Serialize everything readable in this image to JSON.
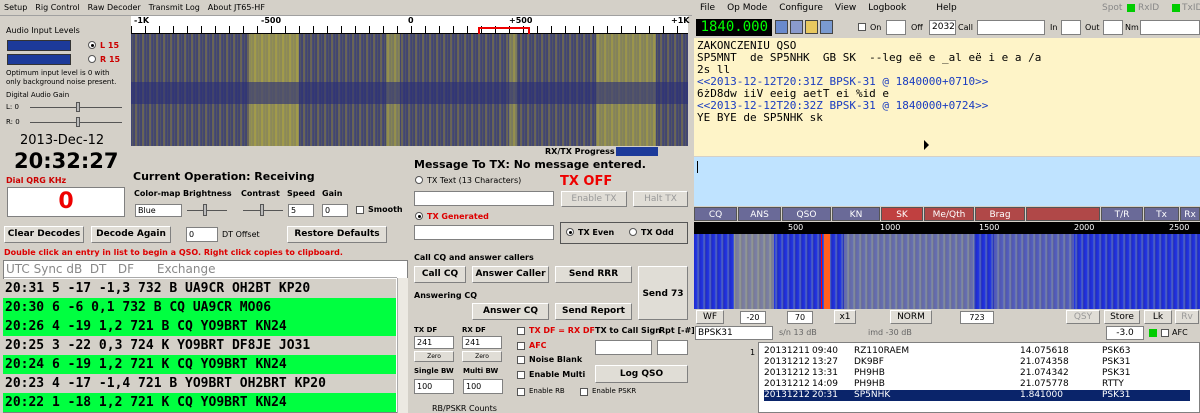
{
  "left_menu": [
    "Setup",
    "Rig Control",
    "Raw Decoder",
    "Transmit Log",
    "About JT65-HF"
  ],
  "audio": {
    "title": "Audio Input Levels",
    "left": "L 15",
    "right": "R 15",
    "note1": "Optimum input level is 0 with",
    "note2": "only background noise present.",
    "gain_title": "Digital Audio Gain",
    "l_lbl": "L: 0",
    "r_lbl": "R: 0"
  },
  "date": "2013-Dec-12",
  "time": "20:32:27",
  "qrg_label": "Dial QRG KHz",
  "qrg_value": "0",
  "ruler": {
    "m1k": "-1K",
    "m500": "-500",
    "z": "0",
    "p500": "+500",
    "p1k": "+1K"
  },
  "rxtx_progress": "RX/TX Progress",
  "operation": "Current Operation:  Receiving",
  "ctrl": {
    "colormap": "Color-map",
    "brightness": "Brightness",
    "contrast": "Contrast",
    "speed": "Speed",
    "gain": "Gain",
    "colormap_val": "Blue",
    "speed_val": "5",
    "gain_val": "0",
    "smooth": "Smooth"
  },
  "buttons": {
    "clear": "Clear Decodes",
    "decode": "Decode Again",
    "dt_val": "0",
    "dt_lbl": "DT Offset",
    "restore": "Restore Defaults"
  },
  "hint": "Double click an entry in list to begin a QSO.  Right click copies to clipboard.",
  "list_header": "UTC Sync dB  DT   DF      Exchange",
  "decodes": [
    {
      "t": "20:31  5 -17 -1,3   732  B UA9CR OH2BT KP20",
      "c": "grey"
    },
    {
      "t": "20:30  6  -6  0,1   732  B CQ UA9CR MO06",
      "c": "green"
    },
    {
      "t": "20:26  4 -19  1,2   721  B CQ YO9BRT KN24",
      "c": "green"
    },
    {
      "t": "20:25  3 -22  0,3   724  K YO9BRT DF8JE JO31",
      "c": "grey"
    },
    {
      "t": "20:24  6 -19  1,2   721  K CQ YO9BRT KN24",
      "c": "green"
    },
    {
      "t": "20:23  4 -17 -1,4   721  B YO9BRT OH2BRT KP20",
      "c": "grey"
    },
    {
      "t": "20:22  1 -18  1,2   721  K CQ YO9BRT KN24",
      "c": "green"
    }
  ],
  "msg": {
    "title": "Message To TX:  No message entered.",
    "tx_text": "TX Text (13 Characters)",
    "tx_off": "TX OFF",
    "enable_tx": "Enable TX",
    "halt_tx": "Halt TX",
    "tx_gen": "TX Generated",
    "tx_even": "TX Even",
    "tx_odd": "TX Odd"
  },
  "callcq": {
    "title": "Call CQ and answer callers",
    "call_cq": "Call CQ",
    "answer_caller": "Answer Caller",
    "send_rrr": "Send RRR",
    "send73": "Send 73",
    "answering": "Answering CQ",
    "answer_cq": "Answer CQ",
    "send_report": "Send Report"
  },
  "txdf": {
    "tx_df": "TX DF",
    "rx_df": "RX DF",
    "tx_val": "241",
    "rx_val": "241",
    "zero": "Zero",
    "single_bw": "Single BW",
    "multi_bw": "Multi BW",
    "sbw_val": "100",
    "mbw_val": "100",
    "txdf_eq": "TX DF = RX DF",
    "afc": "AFC",
    "noise": "Noise Blank",
    "multi": "Enable Multi",
    "enable_rb": "Enable RB",
    "enable_pskr": "Enable PSKR",
    "call_sign": "TX to Call Sign",
    "rpt": "Rpt [-#]",
    "log_qso": "Log QSO",
    "rb_counts": "RB/PSKR Counts"
  },
  "right_menu": [
    "File",
    "Op Mode",
    "Configure",
    "View",
    "Logbook",
    "Help"
  ],
  "right_top": {
    "spot": "Spot",
    "rxid": "RxID",
    "txid": "TxID",
    "freq": "1840.000",
    "on": "On",
    "off": "Off",
    "off_val": "2032",
    "call": "Call",
    "in": "In",
    "out": "Out",
    "nm": "Nm"
  },
  "rx_lines": [
    {
      "t": "ZAKONCZENIU QSO",
      "c": "#000"
    },
    {
      "t": "SP5MNT  de SP5NHK  GB SK  --leg eë e _al eë i e a /a",
      "c": "#000"
    },
    {
      "t": "2s ll",
      "c": "#000"
    },
    {
      "t": "<<2013-12-12T20:31Z BPSK-31 @ 1840000+0710>>",
      "c": "#1a3cc0"
    },
    {
      "t": "6żD8dw iiV eeig aetT ei %id e",
      "c": "#000"
    },
    {
      "t": "<<2013-12-12T20:32Z BPSK-31 @ 1840000+0724>>",
      "c": "#1a3cc0"
    },
    {
      "t": "YE BYE de SP5NHK sk",
      "c": "#000"
    }
  ],
  "tx_bar": [
    "CQ",
    "ANS",
    "QSO",
    "KN",
    "SK",
    "Me/Qth",
    "Brag",
    "",
    "T/R",
    "Tx",
    "Rx"
  ],
  "wf_ruler": [
    "500",
    "1000",
    "1500",
    "2000",
    "2500"
  ],
  "wf_ctrl": {
    "wf": "WF",
    "v1": "-20",
    "v2": "70",
    "x1": "x1",
    "norm": "NORM",
    "freq": "723",
    "qsy": "QSY",
    "store": "Store",
    "lk": "Lk",
    "rv": "Rv"
  },
  "status": {
    "mode": "BPSK31",
    "sn": "s/n 13 dB",
    "imd": "imd -30 dB",
    "sql": "-3.0",
    "afc": "AFC"
  },
  "log": [
    {
      "d": "20131211",
      "t": "09:40",
      "c": "RZ110RAEM",
      "f": "14.075618",
      "m": "PSK63"
    },
    {
      "d": "20131212",
      "t": "13:27",
      "c": "DK9BF",
      "f": "21.074358",
      "m": "PSK31"
    },
    {
      "d": "20131212",
      "t": "13:31",
      "c": "PH9HB",
      "f": "21.074342",
      "m": "PSK31"
    },
    {
      "d": "20131212",
      "t": "14:09",
      "c": "PH9HB",
      "f": "21.075778",
      "m": "RTTY"
    },
    {
      "d": "20131212",
      "t": "20:31",
      "c": "SP5NHK",
      "f": "1.841000",
      "m": "PSK31"
    }
  ]
}
